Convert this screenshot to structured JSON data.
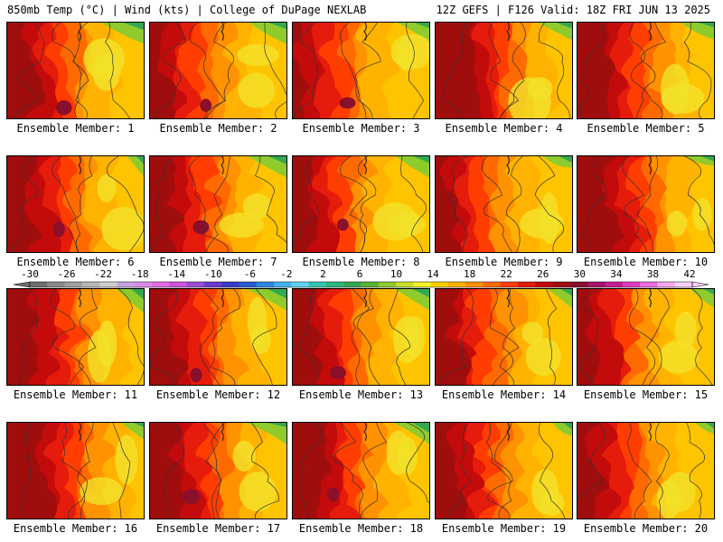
{
  "header": {
    "left": "850mb Temp (°C) | Wind (kts) | College of DuPage NEXLAB",
    "right": "12Z GEFS | F126 Valid: 18Z FRI JUN 13 2025"
  },
  "panel_label_prefix": "Ensemble Member: ",
  "members": [
    {
      "id": "1",
      "label": "Ensemble Member: 1"
    },
    {
      "id": "2",
      "label": "Ensemble Member: 2"
    },
    {
      "id": "3",
      "label": "Ensemble Member: 3"
    },
    {
      "id": "4",
      "label": "Ensemble Member: 4"
    },
    {
      "id": "5",
      "label": "Ensemble Member: 5"
    },
    {
      "id": "6",
      "label": "Ensemble Member: 6"
    },
    {
      "id": "7",
      "label": "Ensemble Member: 7"
    },
    {
      "id": "8",
      "label": "Ensemble Member: 8"
    },
    {
      "id": "9",
      "label": "Ensemble Member: 9"
    },
    {
      "id": "10",
      "label": "Ensemble Member: 10"
    },
    {
      "id": "11",
      "label": "Ensemble Member: 11"
    },
    {
      "id": "12",
      "label": "Ensemble Member: 12"
    },
    {
      "id": "13",
      "label": "Ensemble Member: 13"
    },
    {
      "id": "14",
      "label": "Ensemble Member: 14"
    },
    {
      "id": "15",
      "label": "Ensemble Member: 15"
    },
    {
      "id": "16",
      "label": "Ensemble Member: 16"
    },
    {
      "id": "17",
      "label": "Ensemble Member: 17"
    },
    {
      "id": "18",
      "label": "Ensemble Member: 18"
    },
    {
      "id": "19",
      "label": "Ensemble Member: 19"
    },
    {
      "id": "20",
      "label": "Ensemble Member: 20"
    }
  ],
  "colorbar": {
    "tick_labels": [
      "-30",
      "-26",
      "-22",
      "-18",
      "-14",
      "-10",
      "-6",
      "-2",
      "2",
      "6",
      "10",
      "14",
      "18",
      "22",
      "26",
      "30",
      "34",
      "38",
      "42"
    ],
    "colors": [
      "#6e6e6e",
      "#8a8a8a",
      "#a0a0a0",
      "#b7b7b7",
      "#cfcfcf",
      "#c7a4e6",
      "#d98ce6",
      "#e36ee6",
      "#cf52dc",
      "#9a4bd8",
      "#6a3ad0",
      "#3a3acb",
      "#2a5cd6",
      "#2f86e6",
      "#3fb3ee",
      "#5fd3f0",
      "#2fc7b0",
      "#2bb77f",
      "#33a852",
      "#57b637",
      "#8fcb2c",
      "#c9e02c",
      "#f2f22a",
      "#ffd000",
      "#ffb300",
      "#ff9200",
      "#ff6a00",
      "#ff3d00",
      "#e51c0c",
      "#c40b0b",
      "#a00d0d",
      "#8a0f2a",
      "#a8126a",
      "#c81c95",
      "#e03cbe",
      "#f06be0",
      "#f7a6f0",
      "#fbd0f8"
    ]
  }
}
